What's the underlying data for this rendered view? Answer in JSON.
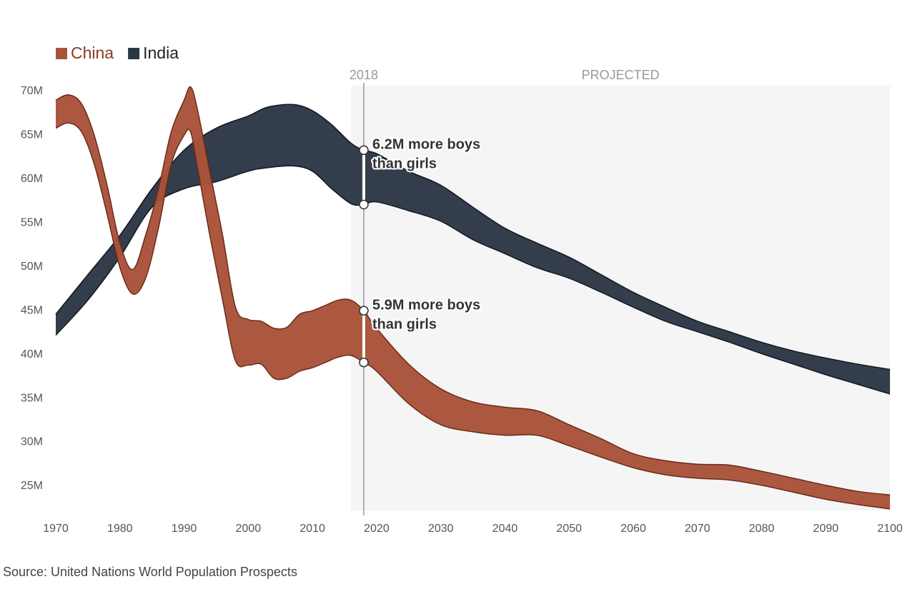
{
  "chart_data": {
    "type": "range_area",
    "source": "Source: United Nations World Population Prospects",
    "legend": "top-left",
    "xlim": [
      1970,
      2100
    ],
    "xticks": [
      1970,
      1980,
      1990,
      2000,
      2010,
      2020,
      2030,
      2040,
      2050,
      2060,
      2070,
      2080,
      2090,
      2100
    ],
    "ylim": [
      22,
      71
    ],
    "yticks": [
      {
        "value": 25,
        "label": "25M"
      },
      {
        "value": 30,
        "label": "30M"
      },
      {
        "value": 35,
        "label": "35M"
      },
      {
        "value": 40,
        "label": "40M"
      },
      {
        "value": 45,
        "label": "45M"
      },
      {
        "value": 50,
        "label": "50M"
      },
      {
        "value": 55,
        "label": "55M"
      },
      {
        "value": 60,
        "label": "60M"
      },
      {
        "value": 65,
        "label": "65M"
      },
      {
        "value": 70,
        "label": "70M"
      }
    ],
    "reference_x": 2018,
    "projected_from": 2016,
    "projected_label": "PROJECTED",
    "series": [
      {
        "name": "India",
        "color": "#2c3746",
        "stroke": "#111820",
        "legend_color": "#222222",
        "x": [
          1970,
          1975,
          1980,
          1985,
          1990,
          1995,
          2000,
          2003,
          2007,
          2010,
          2013,
          2016,
          2018,
          2020,
          2025,
          2030,
          2035,
          2040,
          2045,
          2050,
          2055,
          2060,
          2065,
          2070,
          2075,
          2080,
          2085,
          2090,
          2095,
          2100
        ],
        "high": [
          44.6,
          49.1,
          53.6,
          58.9,
          63.3,
          65.8,
          67.2,
          68.2,
          68.5,
          67.8,
          66.2,
          64.1,
          63.3,
          62.9,
          60.9,
          59.3,
          56.8,
          54.4,
          52.7,
          51.1,
          49.1,
          47.1,
          45.4,
          43.8,
          42.6,
          41.4,
          40.4,
          39.6,
          38.9,
          38.3
        ],
        "low": [
          42.2,
          46.2,
          51.1,
          56.8,
          58.9,
          59.7,
          60.9,
          61.3,
          61.5,
          60.9,
          58.9,
          57.2,
          57.1,
          57.4,
          56.4,
          55.2,
          53.1,
          51.5,
          49.9,
          48.7,
          47.1,
          45.4,
          43.8,
          42.6,
          41.4,
          40.1,
          38.9,
          37.7,
          36.6,
          35.5
        ],
        "annotation": [
          "6.2M more boys",
          "than girls"
        ]
      },
      {
        "name": "China",
        "color": "#a9533a",
        "stroke": "#6b2a18",
        "legend_color": "#8a3a22",
        "x": [
          1970,
          1972,
          1974,
          1976,
          1978,
          1980,
          1982,
          1984,
          1986,
          1988,
          1990,
          1991,
          1992,
          1994,
          1996,
          1998,
          2000,
          2002,
          2004,
          2006,
          2008,
          2010,
          2012,
          2014,
          2016,
          2018,
          2020,
          2025,
          2030,
          2035,
          2040,
          2045,
          2050,
          2055,
          2060,
          2065,
          2070,
          2075,
          2080,
          2085,
          2090,
          2095,
          2100
        ],
        "high": [
          69.0,
          69.6,
          68.6,
          65.0,
          59.3,
          52.7,
          49.7,
          53.6,
          58.9,
          65.4,
          69.0,
          70.5,
          68.2,
          60.9,
          53.6,
          45.4,
          44.0,
          43.8,
          43.0,
          43.1,
          44.6,
          45.0,
          45.6,
          46.2,
          46.2,
          45.0,
          43.0,
          38.9,
          36.1,
          34.6,
          34.0,
          33.6,
          32.0,
          30.4,
          28.7,
          27.9,
          27.5,
          27.4,
          26.7,
          25.9,
          25.1,
          24.4,
          24.0
        ],
        "low": [
          65.8,
          66.4,
          65.4,
          61.7,
          56.0,
          49.9,
          46.9,
          48.7,
          54.4,
          61.7,
          65.0,
          65.4,
          61.7,
          53.6,
          46.2,
          39.3,
          38.8,
          38.9,
          37.3,
          37.3,
          38.1,
          38.5,
          39.1,
          39.7,
          39.9,
          39.1,
          38.1,
          34.4,
          32.0,
          31.2,
          30.8,
          30.8,
          29.6,
          28.3,
          27.1,
          26.3,
          25.9,
          25.7,
          25.1,
          24.3,
          23.5,
          22.9,
          22.4
        ],
        "annotation": [
          "5.9M more boys",
          "than girls"
        ]
      }
    ]
  }
}
